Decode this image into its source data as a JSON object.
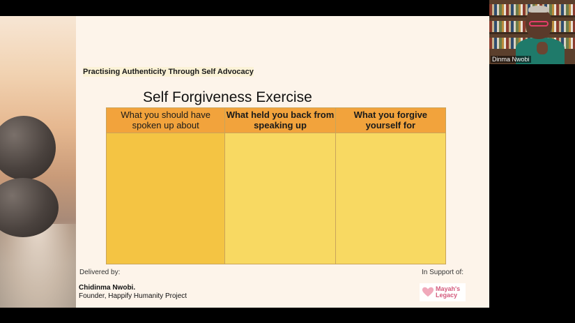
{
  "slide": {
    "subtitle": "Practising Authenticity Through Self Advocacy",
    "title": "Self Forgiveness Exercise",
    "table": {
      "headers": [
        "What you should have spoken up about",
        "What held you back from speaking up",
        "What you forgive yourself for"
      ],
      "colors": {
        "header": "#f2a33c",
        "col1": "#f4c443",
        "col2": "#f8d962",
        "col3": "#f8d962"
      }
    },
    "footer": {
      "delivered_label": "Delivered by:",
      "support_label": "In Support of:",
      "presenter_name": "Chidinma Nwobi.",
      "presenter_role": "Founder, Happify Humanity Project",
      "logo_line1": "Mayah's",
      "logo_line2": "Legacy"
    }
  },
  "video": {
    "participant_name": "Dinma Nwobi"
  }
}
